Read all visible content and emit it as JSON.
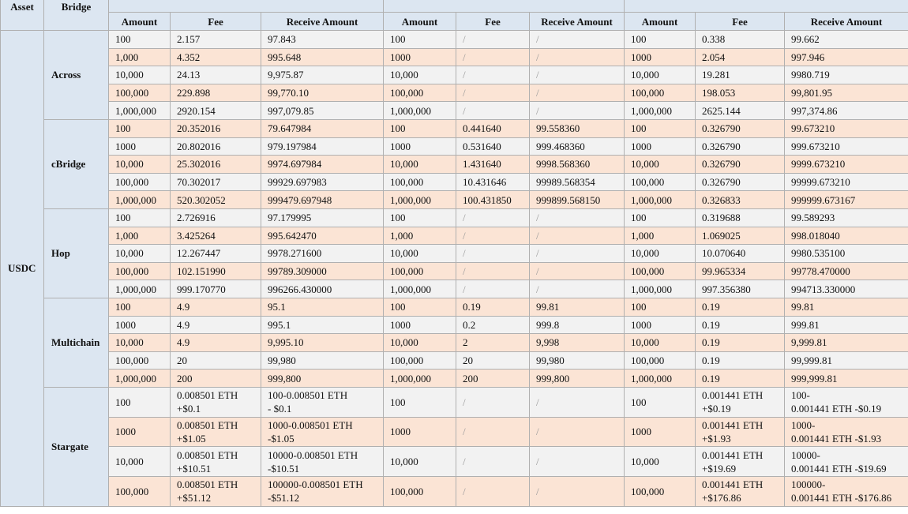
{
  "header": {
    "asset": "Asset",
    "bridge": "Bridge",
    "columns": [
      "Amount",
      "Fee",
      "Receive Amount",
      "Amount",
      "Fee",
      "Receive Amount",
      "Amount",
      "Fee",
      "Receive Amount"
    ]
  },
  "asset": "USDC",
  "bridges": [
    {
      "name": "Across",
      "rows": [
        [
          "100",
          "2.157",
          "97.843",
          "100",
          "/",
          "/",
          "100",
          "0.338",
          "99.662"
        ],
        [
          "1,000",
          "4.352",
          "995.648",
          "1000",
          "/",
          "/",
          "1000",
          "2.054",
          "997.946"
        ],
        [
          "10,000",
          "24.13",
          "9,975.87",
          "10,000",
          "/",
          "/",
          "10,000",
          "19.281",
          "9980.719"
        ],
        [
          "100,000",
          "229.898",
          "99,770.10",
          "100,000",
          "/",
          "/",
          "100,000",
          "198.053",
          "99,801.95"
        ],
        [
          "1,000,000",
          "2920.154",
          "997,079.85",
          "1,000,000",
          "/",
          "/",
          "1,000,000",
          "2625.144",
          "997,374.86"
        ]
      ]
    },
    {
      "name": "cBridge",
      "rows": [
        [
          "100",
          "20.352016",
          "79.647984",
          "100",
          "0.441640",
          "99.558360",
          "100",
          "0.326790",
          "99.673210"
        ],
        [
          "1000",
          "20.802016",
          "979.197984",
          "1000",
          "0.531640",
          "999.468360",
          "1000",
          "0.326790",
          "999.673210"
        ],
        [
          "10,000",
          "25.302016",
          "9974.697984",
          "10,000",
          "1.431640",
          "9998.568360",
          "10,000",
          "0.326790",
          "9999.673210"
        ],
        [
          "100,000",
          "70.302017",
          "99929.697983",
          "100,000",
          "10.431646",
          "99989.568354",
          "100,000",
          "0.326790",
          "99999.673210"
        ],
        [
          "1,000,000",
          "520.302052",
          "999479.697948",
          "1,000,000",
          "100.431850",
          "999899.568150",
          "1,000,000",
          "0.326833",
          "999999.673167"
        ]
      ]
    },
    {
      "name": "Hop",
      "rows": [
        [
          "100",
          "2.726916",
          "97.179995",
          "100",
          "/",
          "/",
          "100",
          "0.319688",
          "99.589293"
        ],
        [
          "1,000",
          "3.425264",
          "995.642470",
          "1,000",
          "/",
          "/",
          "1,000",
          "1.069025",
          "998.018040"
        ],
        [
          "10,000",
          "12.267447",
          "9978.271600",
          "10,000",
          "/",
          "/",
          "10,000",
          "10.070640",
          "9980.535100"
        ],
        [
          "100,000",
          "102.151990",
          "99789.309000",
          "100,000",
          "/",
          "/",
          "100,000",
          "99.965334",
          "99778.470000"
        ],
        [
          "1,000,000",
          "999.170770",
          "996266.430000",
          "1,000,000",
          "/",
          "/",
          "1,000,000",
          "997.356380",
          "994713.330000"
        ]
      ]
    },
    {
      "name": "Multichain",
      "rows": [
        [
          "100",
          "4.9",
          "95.1",
          "100",
          "0.19",
          "99.81",
          "100",
          "0.19",
          "99.81"
        ],
        [
          "1000",
          "4.9",
          "995.1",
          "1000",
          "0.2",
          "999.8",
          "1000",
          "0.19",
          "999.81"
        ],
        [
          "10,000",
          "4.9",
          "9,995.10",
          "10,000",
          "2",
          "9,998",
          "10,000",
          "0.19",
          "9,999.81"
        ],
        [
          "100,000",
          "20",
          "99,980",
          "100,000",
          "20",
          "99,980",
          "100,000",
          "0.19",
          "99,999.81"
        ],
        [
          "1,000,000",
          "200",
          "999,800",
          "1,000,000",
          "200",
          "999,800",
          "1,000,000",
          "0.19",
          "999,999.81"
        ]
      ]
    },
    {
      "name": "Stargate",
      "rows": [
        [
          "100",
          "0.008501 ETH\n+$0.1",
          "100-0.008501 ETH\n- $0.1",
          "100",
          "/",
          "/",
          "100",
          "0.001441 ETH\n+$0.19",
          "100-\n0.001441 ETH -$0.19"
        ],
        [
          "1000",
          "0.008501 ETH\n+$1.05",
          "1000-0.008501 ETH\n-$1.05",
          "1000",
          "/",
          "/",
          "1000",
          "0.001441 ETH\n+$1.93",
          "1000-\n0.001441 ETH -$1.93"
        ],
        [
          "10,000",
          "0.008501 ETH\n+$10.51",
          "10000-0.008501 ETH\n-$10.51",
          "10,000",
          "/",
          "/",
          "10,000",
          "0.001441 ETH\n+$19.69",
          "10000-\n0.001441 ETH -$19.69"
        ],
        [
          "100,000",
          "0.008501 ETH\n+$51.12",
          "100000-0.008501 ETH\n-$51.12",
          "100,000",
          "/",
          "/",
          "100,000",
          "0.001441 ETH\n+$176.86",
          "100000-\n0.001441 ETH -$176.86"
        ]
      ]
    }
  ]
}
